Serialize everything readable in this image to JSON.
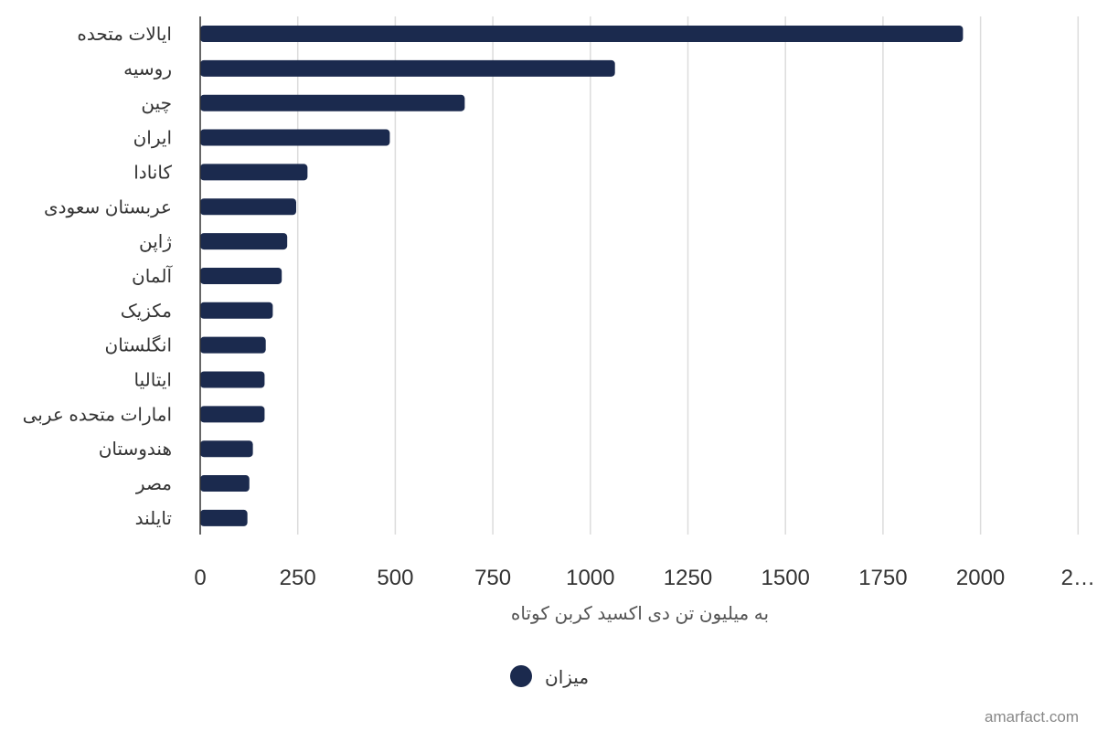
{
  "chart_data": {
    "type": "bar",
    "orientation": "horizontal",
    "categories": [
      "ایالات متحده",
      "روسیه",
      "چین",
      "ایران",
      "کانادا",
      "عربستان سعودی",
      "ژاپن",
      "آلمان",
      "مکزیک",
      "انگلستان",
      "ایتالیا",
      "امارات متحده عربی",
      "هندوستان",
      "مصر",
      "تایلند"
    ],
    "series": [
      {
        "name": "میزان",
        "values": [
          1955,
          1063,
          678,
          486,
          275,
          246,
          223,
          209,
          186,
          168,
          165,
          165,
          135,
          126,
          121
        ]
      }
    ],
    "xticks": [
      "0",
      "250",
      "500",
      "750",
      "1000",
      "1250",
      "1500",
      "1750",
      "2000",
      "2…"
    ],
    "xlim": [
      0,
      2250
    ],
    "xlabel": "به میلیون تن دی اکسید کربن کوتاه",
    "ylabel": "",
    "grid": true,
    "legend_position": "bottom-center",
    "color": "#1b2a4e"
  },
  "credit": "amarfact.com"
}
